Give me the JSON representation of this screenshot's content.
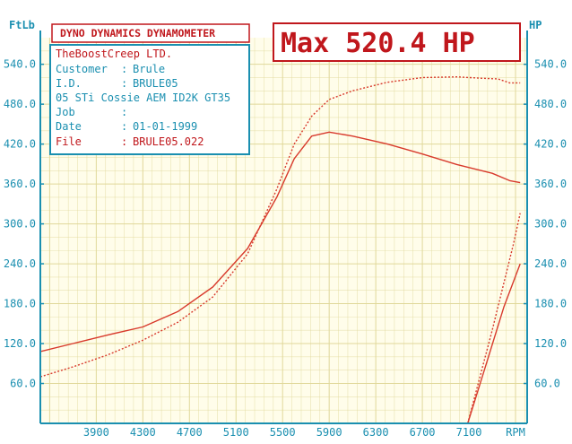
{
  "header": {
    "title": "DYNO DYNAMICS DYNAMOMETER",
    "max_label": "Max 520.4 HP"
  },
  "info": {
    "company": "TheBoostCreep LTD.",
    "rows": [
      {
        "key": "Customer",
        "sep": ":",
        "value": "Brule"
      },
      {
        "key": "I.D.",
        "sep": ":",
        "value": "BRULE05"
      },
      {
        "key": "05 STi Cossie AEM ID2K GT35",
        "sep": "",
        "value": ""
      },
      {
        "key": "Job",
        "sep": ":",
        "value": ""
      },
      {
        "key": "Date",
        "sep": ":",
        "value": "01-01-1999"
      },
      {
        "key": "File",
        "sep": ":",
        "value": "BRULE05.022"
      }
    ]
  },
  "colors": {
    "axis": "#1a8fb0",
    "grid": "#e0d89a",
    "plot_bg": "#fffdea",
    "curve": "#d83a2c",
    "title": "#c0171c"
  },
  "chart_data": {
    "type": "line",
    "title": "DYNO DYNAMICS DYNAMOMETER",
    "xlabel": "RPM",
    "ylabel_left": "FtLb",
    "ylabel_right": "HP",
    "xlim": [
      3420,
      7600
    ],
    "ylim": [
      0,
      580
    ],
    "x_ticks": [
      "3900",
      "4300",
      "4700",
      "5100",
      "5500",
      "5900",
      "6300",
      "6700",
      "7100",
      "RPM"
    ],
    "y_ticks_left": [
      "60.0",
      "120.0",
      "180.0",
      "240.0",
      "300.0",
      "360.0",
      "420.0",
      "480.0",
      "540.0"
    ],
    "y_ticks_right": [
      "60.0",
      "120.0",
      "180.0",
      "240.0",
      "300.0",
      "360.0",
      "420.0",
      "480.0",
      "540.0"
    ],
    "grid": true,
    "series": [
      {
        "style": "solid",
        "x": [
          3420,
          3700,
          4000,
          4300,
          4600,
          4900,
          5200,
          5450,
          5600,
          5750,
          5900,
          6100,
          6400,
          6700,
          7000,
          7300,
          7450,
          7540
        ],
        "y": [
          108,
          120,
          133,
          145,
          168,
          205,
          263,
          340,
          398,
          432,
          438,
          432,
          420,
          405,
          389,
          376,
          365,
          362
        ]
      },
      {
        "style": "dotted",
        "x": [
          3420,
          3700,
          4000,
          4300,
          4600,
          4900,
          5200,
          5450,
          5600,
          5750,
          5900,
          6100,
          6400,
          6700,
          7000,
          7200,
          7350,
          7450,
          7540
        ],
        "y": [
          70,
          85,
          103,
          125,
          152,
          190,
          255,
          352,
          420,
          462,
          487,
          500,
          513,
          520,
          521,
          519,
          518,
          512,
          512
        ]
      },
      {
        "style": "solid",
        "x": [
          7090,
          7250,
          7400,
          7540
        ],
        "y": [
          0,
          90,
          175,
          240
        ]
      },
      {
        "style": "dotted",
        "x": [
          7090,
          7300,
          7480,
          7540
        ],
        "y": [
          0,
          140,
          268,
          316
        ]
      }
    ]
  }
}
